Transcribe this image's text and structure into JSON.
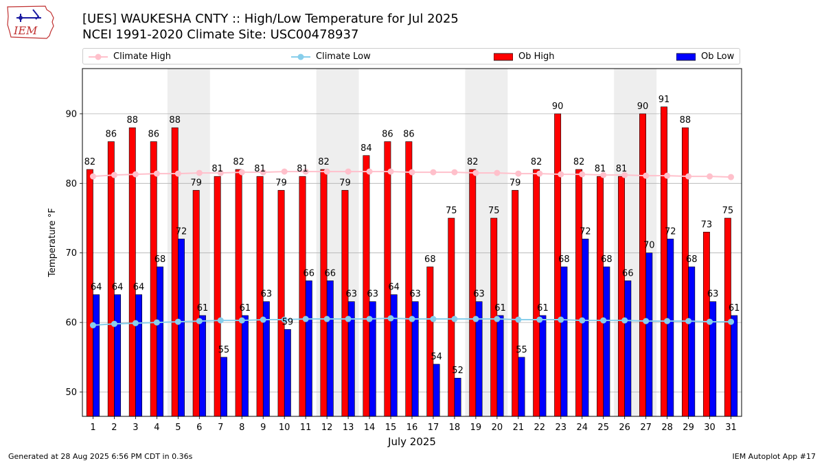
{
  "header": {
    "title_line1": "[UES] WAUKESHA CNTY :: High/Low Temperature for Jul 2025",
    "title_line2": "NCEI 1991-2020 Climate Site: USC00478937"
  },
  "logo": {
    "text": "IEM",
    "icon": "iem-iowa-logo-icon"
  },
  "legend": {
    "climate_high": "Climate High",
    "climate_low": "Climate Low",
    "ob_high": "Ob High",
    "ob_low": "Ob Low"
  },
  "footer": {
    "generated": "Generated at 28 Aug 2025 6:56 PM CDT in 0.36s",
    "app": "IEM Autoplot App #17"
  },
  "colors": {
    "ob_high": "#ff0000",
    "ob_low": "#0000ff",
    "climate_high": "#ffc0cb",
    "climate_low": "#87ceeb",
    "weekend_shade": "#eeeeee",
    "grid": "#b0b0b0"
  },
  "chart_data": {
    "type": "bar",
    "title": "[UES] WAUKESHA CNTY :: High/Low Temperature for Jul 2025",
    "subtitle": "NCEI 1991-2020 Climate Site: USC00478937",
    "xlabel": "July 2025",
    "ylabel": "Temperature °F",
    "ylim": [
      46.5,
      96.5
    ],
    "yticks": [
      50,
      60,
      70,
      80,
      90
    ],
    "grid": true,
    "legend_position": "top",
    "categories": [
      "1",
      "2",
      "3",
      "4",
      "5",
      "6",
      "7",
      "8",
      "9",
      "10",
      "11",
      "12",
      "13",
      "14",
      "15",
      "16",
      "17",
      "18",
      "19",
      "20",
      "21",
      "22",
      "23",
      "24",
      "25",
      "26",
      "27",
      "28",
      "29",
      "30",
      "31"
    ],
    "shaded_weekends": [
      [
        5,
        6
      ],
      [
        12,
        13
      ],
      [
        19,
        20
      ],
      [
        26,
        27
      ]
    ],
    "series": [
      {
        "name": "Ob High",
        "kind": "bar",
        "values": [
          82,
          86,
          88,
          86,
          88,
          79,
          81,
          82,
          81,
          79,
          81,
          82,
          79,
          84,
          86,
          86,
          68,
          75,
          82,
          75,
          79,
          82,
          90,
          82,
          81,
          81,
          90,
          91,
          88,
          73,
          75
        ]
      },
      {
        "name": "Ob Low",
        "kind": "bar",
        "values": [
          64,
          64,
          64,
          68,
          72,
          61,
          55,
          61,
          63,
          59,
          66,
          66,
          63,
          63,
          64,
          63,
          54,
          52,
          63,
          61,
          55,
          61,
          68,
          72,
          68,
          66,
          70,
          72,
          68,
          63,
          61
        ]
      },
      {
        "name": "Climate High",
        "kind": "line",
        "values": [
          81.0,
          81.2,
          81.3,
          81.4,
          81.4,
          81.5,
          81.5,
          81.6,
          81.6,
          81.7,
          81.7,
          81.7,
          81.7,
          81.7,
          81.7,
          81.6,
          81.6,
          81.6,
          81.5,
          81.5,
          81.4,
          81.4,
          81.3,
          81.3,
          81.2,
          81.2,
          81.1,
          81.1,
          81.0,
          81.0,
          80.9
        ]
      },
      {
        "name": "Climate Low",
        "kind": "line",
        "values": [
          59.6,
          59.8,
          59.9,
          60.0,
          60.1,
          60.2,
          60.3,
          60.3,
          60.4,
          60.4,
          60.5,
          60.5,
          60.5,
          60.5,
          60.6,
          60.5,
          60.5,
          60.5,
          60.5,
          60.5,
          60.4,
          60.4,
          60.4,
          60.3,
          60.3,
          60.3,
          60.2,
          60.2,
          60.2,
          60.1,
          60.1
        ]
      }
    ]
  }
}
